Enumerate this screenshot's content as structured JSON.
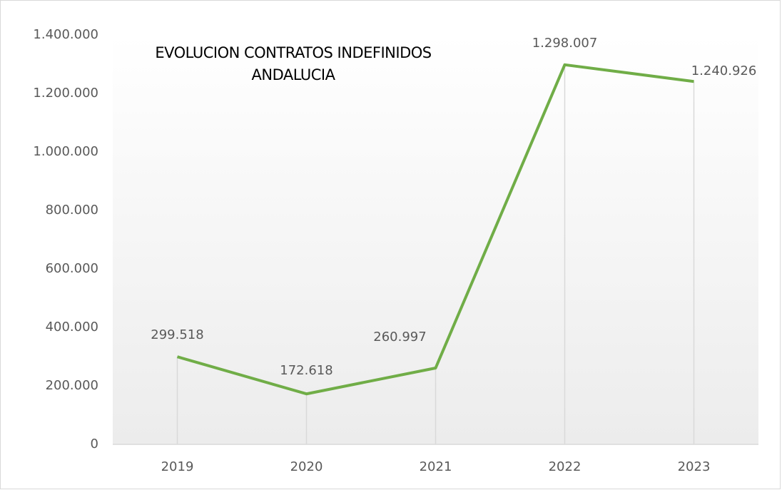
{
  "chart_data": {
    "type": "line",
    "title": [
      "EVOLUCION CONTRATOS INDEFINIDOS",
      "ANDALUCIA"
    ],
    "categories": [
      "2019",
      "2020",
      "2021",
      "2022",
      "2023"
    ],
    "series": [
      {
        "color": "#70ad47",
        "values": [
          299518,
          172618,
          260997,
          1298007,
          1240926
        ],
        "value_labels": [
          "299.518",
          "172.618",
          "260.997",
          "1.298.007",
          "1.240.926"
        ]
      }
    ],
    "ylim": [
      0,
      1400000
    ],
    "yticks": [
      0,
      {
        "value": 200000,
        "label": "200.000"
      },
      {
        "value": 400000,
        "label": "400.000"
      },
      {
        "value": 600000,
        "label": "600.000"
      },
      {
        "value": 800000,
        "label": "800.000"
      },
      {
        "value": 1000000,
        "label": "1.000.000"
      },
      {
        "value": 1200000,
        "label": "1.200.000"
      },
      {
        "value": 1400000,
        "label": "1.400.000"
      }
    ],
    "drop_lines": true
  }
}
